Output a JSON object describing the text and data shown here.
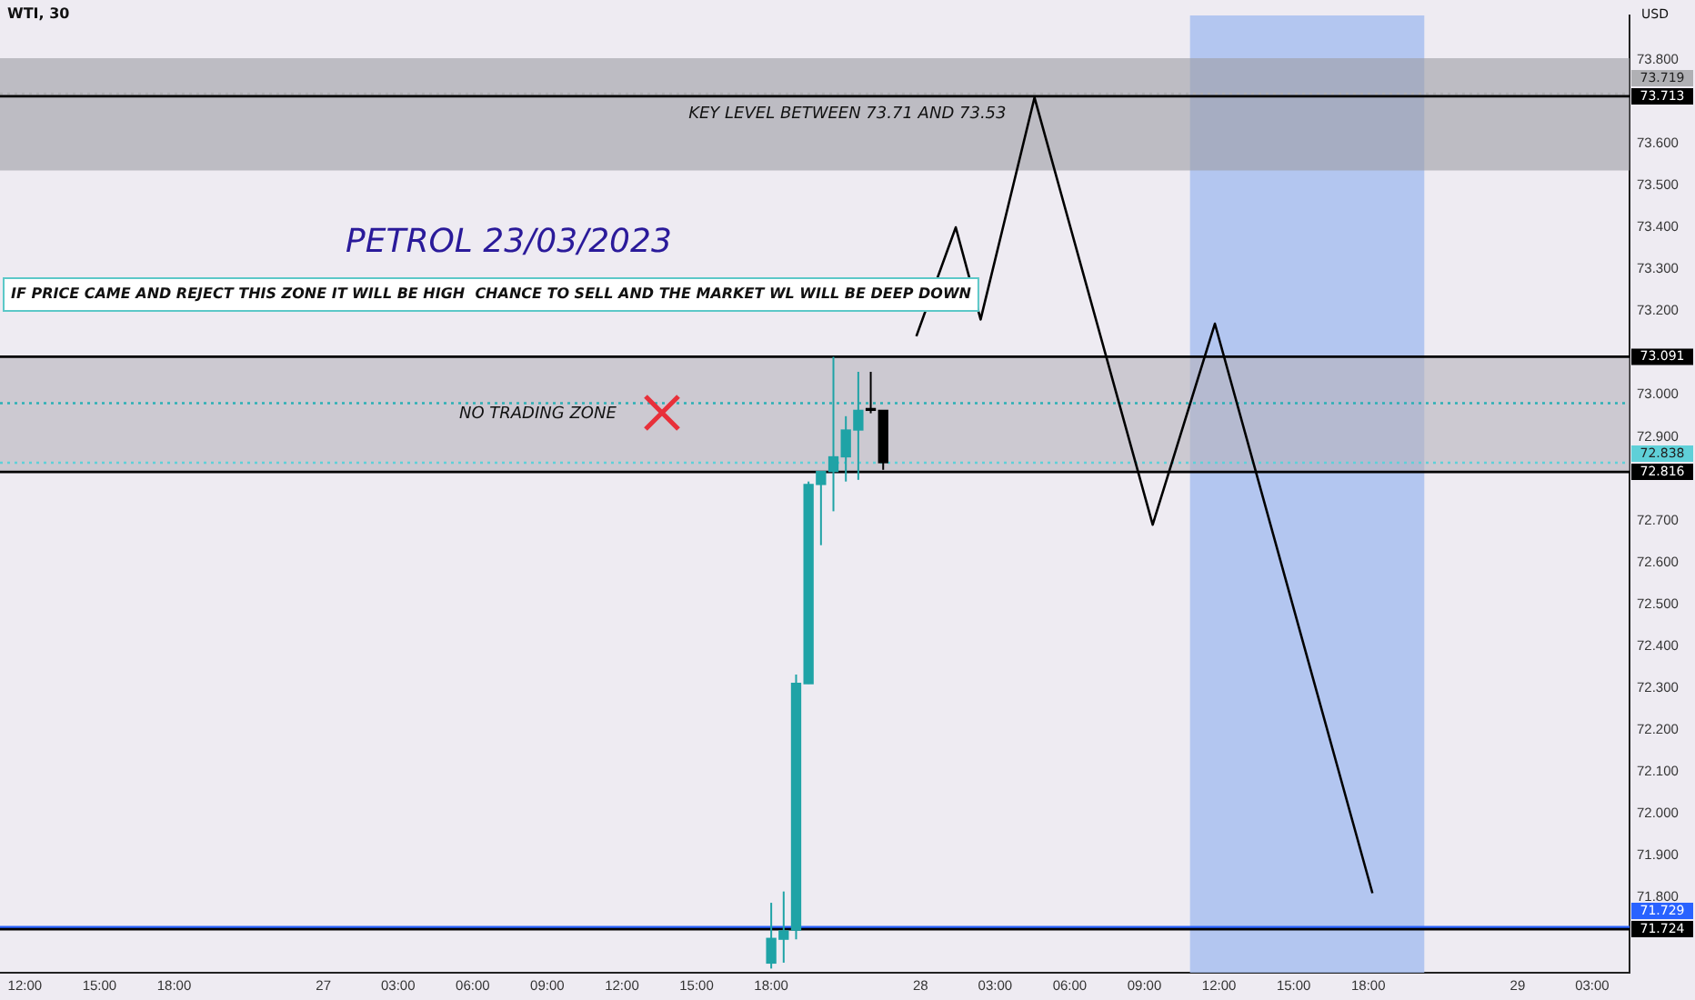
{
  "chart_data": {
    "type": "candlestick",
    "title": "WTI, 30",
    "ylabel": "USD",
    "x": [
      "2023-03-27T18:00",
      "2023-03-27T18:30",
      "2023-03-27T19:00",
      "2023-03-27T19:30",
      "2023-03-27T20:00",
      "2023-03-27T20:30",
      "2023-03-27T21:00",
      "2023-03-27T21:30",
      "2023-03-27T22:00",
      "2023-03-27T22:30"
    ],
    "ohlc": [
      [
        71.643,
        71.787,
        71.63,
        71.702
      ],
      [
        71.7,
        71.814,
        71.644,
        71.72
      ],
      [
        71.722,
        72.332,
        71.7,
        72.311
      ],
      [
        72.31,
        72.793,
        72.31,
        72.786
      ],
      [
        72.786,
        72.817,
        72.641,
        72.817
      ],
      [
        72.817,
        73.091,
        72.722,
        72.852
      ],
      [
        72.852,
        72.949,
        72.793,
        72.916
      ],
      [
        72.916,
        73.055,
        72.797,
        72.963
      ],
      [
        72.965,
        73.055,
        72.956,
        72.963
      ],
      [
        72.963,
        72.963,
        72.821,
        72.838
      ]
    ],
    "colors": [
      "#1fa3a6",
      "#1fa3a6",
      "#1fa3a6",
      "#1fa3a6",
      "#1fa3a6",
      "#1fa3a6",
      "#1fa3a6",
      "#1fa3a6",
      "#000000",
      "#000000"
    ],
    "series": [
      {
        "type": "line",
        "color": "#000000",
        "x": [
          "2023-03-27T23:50",
          "2023-03-28T01:25",
          "2023-03-28T02:25",
          "2023-03-28T04:35",
          "2023-03-28T09:20",
          "2023-03-28T11:50",
          "2023-03-28T18:10"
        ],
        "values": [
          73.14,
          73.4,
          73.18,
          73.71,
          72.69,
          73.17,
          71.81
        ]
      }
    ],
    "xlim": [
      "2023-03-26T11:00",
      "2023-03-29T04:30"
    ],
    "xticks": [
      {
        "value": "2023-03-26T12:00",
        "label": "12:00"
      },
      {
        "value": "2023-03-26T15:00",
        "label": "15:00"
      },
      {
        "value": "2023-03-26T18:00",
        "label": "18:00"
      },
      {
        "value": "2023-03-27T00:00",
        "label": "27"
      },
      {
        "value": "2023-03-27T03:00",
        "label": "03:00"
      },
      {
        "value": "2023-03-27T06:00",
        "label": "06:00"
      },
      {
        "value": "2023-03-27T09:00",
        "label": "09:00"
      },
      {
        "value": "2023-03-27T12:00",
        "label": "12:00"
      },
      {
        "value": "2023-03-27T15:00",
        "label": "15:00"
      },
      {
        "value": "2023-03-27T18:00",
        "label": "18:00"
      },
      {
        "value": "2023-03-28T00:00",
        "label": "28"
      },
      {
        "value": "2023-03-28T03:00",
        "label": "03:00"
      },
      {
        "value": "2023-03-28T06:00",
        "label": "06:00"
      },
      {
        "value": "2023-03-28T09:00",
        "label": "09:00"
      },
      {
        "value": "2023-03-28T12:00",
        "label": "12:00"
      },
      {
        "value": "2023-03-28T15:00",
        "label": "15:00"
      },
      {
        "value": "2023-03-28T18:00",
        "label": "18:00"
      },
      {
        "value": "2023-03-29T00:00",
        "label": "29"
      },
      {
        "value": "2023-03-29T03:00",
        "label": "03:00"
      }
    ],
    "ylim": [
      71.62,
      73.906
    ],
    "yticks": [
      {
        "value": 71.8,
        "label": "71.800"
      },
      {
        "value": 71.9,
        "label": "71.900"
      },
      {
        "value": 72.0,
        "label": "72.000"
      },
      {
        "value": 72.1,
        "label": "72.100"
      },
      {
        "value": 72.2,
        "label": "72.200"
      },
      {
        "value": 72.3,
        "label": "72.300"
      },
      {
        "value": 72.4,
        "label": "72.400"
      },
      {
        "value": 72.5,
        "label": "72.500"
      },
      {
        "value": 72.6,
        "label": "72.600"
      },
      {
        "value": 72.7,
        "label": "72.700"
      },
      {
        "value": 72.9,
        "label": "72.900"
      },
      {
        "value": 73.0,
        "label": "73.000"
      },
      {
        "value": 73.2,
        "label": "73.200"
      },
      {
        "value": 73.3,
        "label": "73.300"
      },
      {
        "value": 73.4,
        "label": "73.400"
      },
      {
        "value": 73.5,
        "label": "73.500"
      },
      {
        "value": 73.6,
        "label": "73.600"
      },
      {
        "value": 73.8,
        "label": "73.800"
      }
    ],
    "bands": [
      {
        "axis": "x",
        "from": "2023-03-28T10:50",
        "to": "2023-03-28T20:15",
        "color": "#a8c0f0"
      },
      {
        "axis": "y",
        "from": 73.536,
        "to": 73.804,
        "label": "KEY LEVEL BETWEEN 73.71 AND 73.53",
        "color": "#9d9ca4"
      },
      {
        "axis": "y",
        "from": 72.816,
        "to": 73.091,
        "label": "NO TRADING ZONE",
        "color": "#b5b3bb"
      }
    ],
    "ref_lines": [
      {
        "axis": "y",
        "value": 73.719,
        "label": "73.719",
        "color": "#b0b0b4",
        "line_style": "dotted"
      },
      {
        "axis": "y",
        "value": 73.713,
        "label": "73.713",
        "color": "#000000"
      },
      {
        "axis": "y",
        "value": 73.091,
        "label": "73.091",
        "color": "#000000"
      },
      {
        "axis": "y",
        "value": 72.98,
        "label": null,
        "color": "#2bb0b5",
        "line_style": "dotted"
      },
      {
        "axis": "y",
        "value": 72.838,
        "label": "72.838",
        "color": "#5fd0d8",
        "line_style": "dotted"
      },
      {
        "axis": "y",
        "value": 72.816,
        "label": "72.816",
        "color": "#000000"
      },
      {
        "axis": "y",
        "value": 71.729,
        "label": "71.729",
        "color": "#2962ff"
      },
      {
        "axis": "y",
        "value": 71.724,
        "label": "71.724",
        "color": "#000000"
      }
    ],
    "annotations": [
      "PETROL 23/03/2023",
      "IF PRICE CAME AND REJECT THIS ZONE IT WILL BE HIGH  CHANCE TO SELL AND THE MARKET WL WILL BE DEEP DOWN"
    ]
  }
}
